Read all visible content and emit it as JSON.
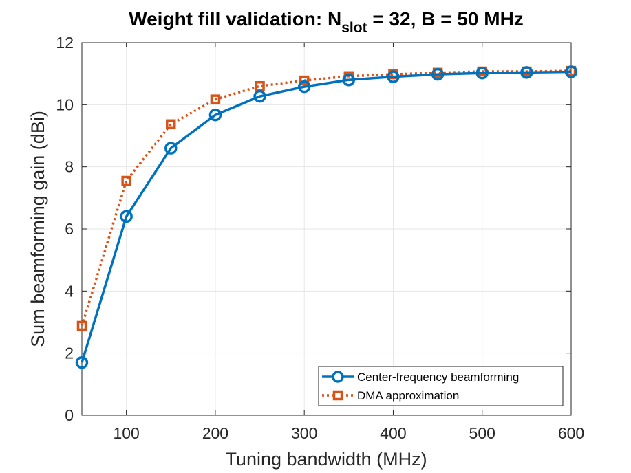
{
  "chart_data": {
    "type": "line",
    "title": {
      "prefix": "Weight fill validation: N",
      "subscript": "slot",
      "suffix": " = 32, B = 50 MHz"
    },
    "xlabel": "Tuning bandwidth (MHz)",
    "ylabel": "Sum beamforming gain (dBi)",
    "xlim": [
      50,
      600
    ],
    "ylim": [
      0,
      12
    ],
    "xticks": [
      100,
      200,
      300,
      400,
      500,
      600
    ],
    "xtick_labels": [
      "100",
      "200",
      "300",
      "400",
      "500",
      "600"
    ],
    "yticks": [
      0,
      2,
      4,
      6,
      8,
      10,
      12
    ],
    "ytick_labels": [
      "0",
      "2",
      "4",
      "6",
      "8",
      "10",
      "12"
    ],
    "grid": true,
    "legend_position": "bottom-right",
    "x": [
      50,
      100,
      150,
      200,
      250,
      300,
      350,
      400,
      450,
      500,
      550,
      600
    ],
    "series": [
      {
        "name": "Center-frequency beamforming",
        "color": "#0072BD",
        "line_style": "solid",
        "marker": "circle",
        "values": [
          1.7,
          6.4,
          8.6,
          9.67,
          10.27,
          10.58,
          10.8,
          10.9,
          10.98,
          11.02,
          11.04,
          11.06
        ]
      },
      {
        "name": "DMA approximation",
        "color": "#D95319",
        "line_style": "dotted",
        "marker": "square",
        "values": [
          2.88,
          7.55,
          9.37,
          10.17,
          10.6,
          10.78,
          10.92,
          10.98,
          11.03,
          11.07,
          11.07,
          11.09
        ]
      }
    ]
  }
}
